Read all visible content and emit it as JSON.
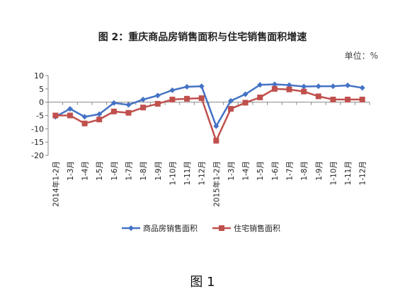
{
  "chart_data": {
    "type": "line",
    "title": "图 2：重庆商品房销售面积与住宅销售面积增速",
    "unit_label": "单位：%",
    "categories": [
      "2014年1-2月",
      "1-3月",
      "1-4月",
      "1-5月",
      "1-6月",
      "1-7月",
      "1-8月",
      "1-9月",
      "1-10月",
      "1-11月",
      "1-12月",
      "2015年1-2月",
      "1-3月",
      "1-4月",
      "1-5月",
      "1-6月",
      "1-7月",
      "1-8月",
      "1-9月",
      "1-10月",
      "1-11月",
      "1-12月"
    ],
    "series": [
      {
        "name": "商品房销售面积",
        "color": "#4472c4",
        "marker": "diamond",
        "values": [
          -5.5,
          -2.5,
          -5.5,
          -4.5,
          -0.3,
          -1.0,
          1.0,
          2.5,
          4.5,
          5.8,
          6.0,
          -9.0,
          0.5,
          3.0,
          6.5,
          6.7,
          6.4,
          5.9,
          6.0,
          6.0,
          6.3,
          5.4
        ]
      },
      {
        "name": "住宅销售面积",
        "color": "#c0504d",
        "marker": "square",
        "values": [
          -5.0,
          -5.0,
          -8.0,
          -6.5,
          -3.5,
          -4.0,
          -2.0,
          -0.6,
          1.0,
          1.3,
          1.5,
          -14.5,
          -2.5,
          -0.2,
          1.8,
          5.0,
          4.8,
          4.0,
          2.2,
          1.0,
          1.0,
          1.0
        ]
      }
    ],
    "yticks": [
      10,
      5,
      0,
      -5,
      -10,
      -15,
      -20
    ],
    "ylim": [
      -20,
      10
    ],
    "grid": false,
    "legend_position": "bottom"
  },
  "caption": "图 1"
}
